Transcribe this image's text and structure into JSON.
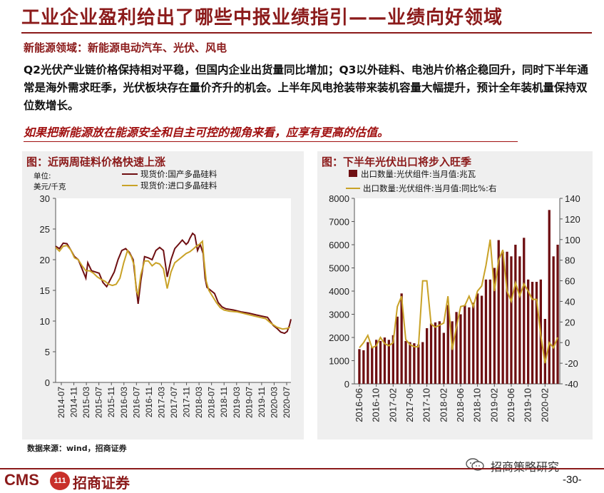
{
  "slide": {
    "title": "工业企业盈利给出了哪些中报业绩指引——业绩向好领域",
    "subheading": "新能源领域：新能源电动汽车、光伏、风电",
    "paragraph": "Q2光伏产业链价格保持相对平稳，但国内企业出货量同比增加；Q3以外硅料、电池片价格企稳回升，同时下半年通常是海外需求旺季，光伏板块存在量价齐升的机会。上半年风电抢装带来装机容量大幅提升，预计全年装机量保持双位数增长。",
    "highlight": "如果把新能源放在能源安全和自主可控的视角来看，应享有更高的估值。",
    "source": "数据来源：wind，招商证券",
    "logo_cms": "CMS",
    "logo_badge": "111",
    "logo_cn": "招商证券",
    "watermark": "招商策略研究",
    "page_number": "-30-"
  },
  "colors": {
    "accent": "#8b1a1a",
    "series_dark": "#6e0f12",
    "series_gold": "#c9a227",
    "panel_bg": "#efefef"
  },
  "chart_data": [
    {
      "type": "line",
      "title": "图：近两周硅料价格快速上涨",
      "unit_label": [
        "单位:",
        "美元/千克"
      ],
      "ylim": [
        0,
        30
      ],
      "yticks": [
        0,
        5,
        10,
        15,
        20,
        25,
        30
      ],
      "xticks": [
        "2014-07",
        "2014-11",
        "2015-03",
        "2015-07",
        "2015-11",
        "2016-03",
        "2016-07",
        "2016-11",
        "2017-03",
        "2017-07",
        "2017-11",
        "2018-03",
        "2018-07",
        "2018-11",
        "2019-03",
        "2019-07",
        "2019-11",
        "2020-03",
        "2020-07"
      ],
      "x_range": [
        2014.5,
        2020.72
      ],
      "legend_position": "top",
      "series": [
        {
          "name": "现货价:国产多晶硅料",
          "color": "#6e0f12",
          "points": [
            [
              2014.5,
              22.2
            ],
            [
              2014.6,
              21.8
            ],
            [
              2014.7,
              22.7
            ],
            [
              2014.8,
              22.6
            ],
            [
              2014.9,
              21.6
            ],
            [
              2015.0,
              20.5
            ],
            [
              2015.1,
              20.0
            ],
            [
              2015.2,
              18.5
            ],
            [
              2015.3,
              17.0
            ],
            [
              2015.35,
              19.5
            ],
            [
              2015.45,
              18.2
            ],
            [
              2015.55,
              18.0
            ],
            [
              2015.65,
              17.8
            ],
            [
              2015.75,
              16.3
            ],
            [
              2015.85,
              15.6
            ],
            [
              2015.95,
              16.8
            ],
            [
              2016.05,
              18.0
            ],
            [
              2016.15,
              20.0
            ],
            [
              2016.25,
              21.5
            ],
            [
              2016.35,
              21.8
            ],
            [
              2016.45,
              21.2
            ],
            [
              2016.55,
              20.0
            ],
            [
              2016.62,
              16.0
            ],
            [
              2016.68,
              12.8
            ],
            [
              2016.75,
              16.5
            ],
            [
              2016.85,
              20.5
            ],
            [
              2016.95,
              20.3
            ],
            [
              2017.05,
              20.0
            ],
            [
              2017.15,
              21.5
            ],
            [
              2017.25,
              22.0
            ],
            [
              2017.35,
              21.5
            ],
            [
              2017.45,
              17.2
            ],
            [
              2017.55,
              20.0
            ],
            [
              2017.65,
              21.8
            ],
            [
              2017.75,
              22.5
            ],
            [
              2017.85,
              23.2
            ],
            [
              2017.95,
              22.5
            ],
            [
              2018.0,
              22.8
            ],
            [
              2018.05,
              23.5
            ],
            [
              2018.12,
              24.3
            ],
            [
              2018.18,
              24.0
            ],
            [
              2018.25,
              21.5
            ],
            [
              2018.32,
              22.5
            ],
            [
              2018.4,
              21.0
            ],
            [
              2018.45,
              17.0
            ],
            [
              2018.5,
              15.5
            ],
            [
              2018.6,
              15.0
            ],
            [
              2018.7,
              14.5
            ],
            [
              2018.8,
              13.0
            ],
            [
              2018.9,
              12.3
            ],
            [
              2019.0,
              12.0
            ],
            [
              2019.2,
              11.8
            ],
            [
              2019.4,
              11.5
            ],
            [
              2019.6,
              11.3
            ],
            [
              2019.8,
              11.0
            ],
            [
              2019.95,
              10.8
            ],
            [
              2020.1,
              10.6
            ],
            [
              2020.25,
              9.3
            ],
            [
              2020.35,
              8.8
            ],
            [
              2020.45,
              8.2
            ],
            [
              2020.55,
              8.0
            ],
            [
              2020.62,
              8.3
            ],
            [
              2020.68,
              9.3
            ],
            [
              2020.72,
              10.3
            ]
          ]
        },
        {
          "name": "现货价:进口多晶硅料",
          "color": "#c9a227",
          "points": [
            [
              2014.5,
              22.0
            ],
            [
              2014.6,
              21.4
            ],
            [
              2014.7,
              22.2
            ],
            [
              2014.8,
              22.3
            ],
            [
              2014.9,
              21.6
            ],
            [
              2015.0,
              20.3
            ],
            [
              2015.1,
              20.0
            ],
            [
              2015.2,
              19.0
            ],
            [
              2015.3,
              18.2
            ],
            [
              2015.4,
              18.2
            ],
            [
              2015.5,
              17.8
            ],
            [
              2015.6,
              17.2
            ],
            [
              2015.7,
              16.8
            ],
            [
              2015.8,
              16.5
            ],
            [
              2015.9,
              16.0
            ],
            [
              2016.0,
              15.8
            ],
            [
              2016.1,
              16.0
            ],
            [
              2016.2,
              17.0
            ],
            [
              2016.3,
              19.5
            ],
            [
              2016.4,
              21.5
            ],
            [
              2016.5,
              20.5
            ],
            [
              2016.58,
              19.0
            ],
            [
              2016.63,
              15.0
            ],
            [
              2016.68,
              14.3
            ],
            [
              2016.75,
              17.5
            ],
            [
              2016.85,
              19.8
            ],
            [
              2016.95,
              19.8
            ],
            [
              2017.05,
              19.0
            ],
            [
              2017.15,
              19.5
            ],
            [
              2017.25,
              19.3
            ],
            [
              2017.35,
              18.5
            ],
            [
              2017.45,
              15.3
            ],
            [
              2017.55,
              18.0
            ],
            [
              2017.65,
              19.5
            ],
            [
              2017.75,
              20.0
            ],
            [
              2017.85,
              20.5
            ],
            [
              2017.95,
              21.0
            ],
            [
              2018.05,
              21.3
            ],
            [
              2018.15,
              21.8
            ],
            [
              2018.22,
              22.2
            ],
            [
              2018.3,
              22.5
            ],
            [
              2018.38,
              23.0
            ],
            [
              2018.42,
              20.0
            ],
            [
              2018.48,
              16.5
            ],
            [
              2018.55,
              15.0
            ],
            [
              2018.65,
              14.0
            ],
            [
              2018.75,
              13.0
            ],
            [
              2018.85,
              12.2
            ],
            [
              2018.95,
              11.8
            ],
            [
              2019.1,
              11.6
            ],
            [
              2019.3,
              11.5
            ],
            [
              2019.5,
              11.2
            ],
            [
              2019.7,
              10.9
            ],
            [
              2019.9,
              10.6
            ],
            [
              2020.05,
              10.4
            ],
            [
              2020.2,
              9.6
            ],
            [
              2020.35,
              9.0
            ],
            [
              2020.5,
              8.7
            ],
            [
              2020.62,
              8.8
            ],
            [
              2020.7,
              9.0
            ]
          ]
        }
      ]
    },
    {
      "type": "bar+line",
      "title": "图：下半年光伏出口将步入旺季",
      "ylim_left": [
        0,
        8000
      ],
      "yticks_left": [
        0,
        1000,
        2000,
        3000,
        4000,
        5000,
        6000,
        7000,
        8000
      ],
      "ylim_right": [
        -40,
        140
      ],
      "yticks_right": [
        -40,
        -20,
        0,
        20,
        40,
        60,
        80,
        100,
        120,
        140
      ],
      "xticks": [
        "2016-06",
        "2016-10",
        "2017-02",
        "2017-06",
        "2017-10",
        "2018-02",
        "2018-06",
        "2018-10",
        "2019-02",
        "2019-06",
        "2019-10",
        "2020-02"
      ],
      "legend_position": "top",
      "series": [
        {
          "name": "出口数量:光伏组件:当月值:兆瓦",
          "type": "bar",
          "axis": "left",
          "color": "#6e0f12",
          "values": [
            1500,
            1450,
            1800,
            1600,
            1900,
            1850,
            2000,
            1900,
            2100,
            2900,
            3900,
            1850,
            1800,
            1750,
            1700,
            1800,
            2400,
            2600,
            2650,
            2700,
            2200,
            3400,
            2700,
            3100,
            3000,
            3400,
            3300,
            3500,
            3900,
            3800,
            4500,
            4500,
            5000,
            6200,
            5700,
            5700,
            5500,
            6000,
            5500,
            6300,
            4500,
            4400,
            4400,
            4500,
            2800,
            7500,
            5500,
            6000
          ]
        },
        {
          "name": "出口数量:光伏组件:当月值:同比%:右",
          "type": "line",
          "axis": "right",
          "color": "#c9a227",
          "values": [
            -5,
            0,
            7,
            -5,
            -3,
            5,
            -1,
            -3,
            0,
            35,
            45,
            3,
            -2,
            -4,
            -4,
            60,
            60,
            18,
            15,
            17,
            19,
            45,
            -7,
            15,
            35,
            36,
            45,
            35,
            50,
            55,
            75,
            100,
            50,
            80,
            90,
            50,
            40,
            58,
            45,
            57,
            50,
            42,
            42,
            7,
            -20,
            0,
            -5,
            5
          ]
        }
      ]
    }
  ]
}
